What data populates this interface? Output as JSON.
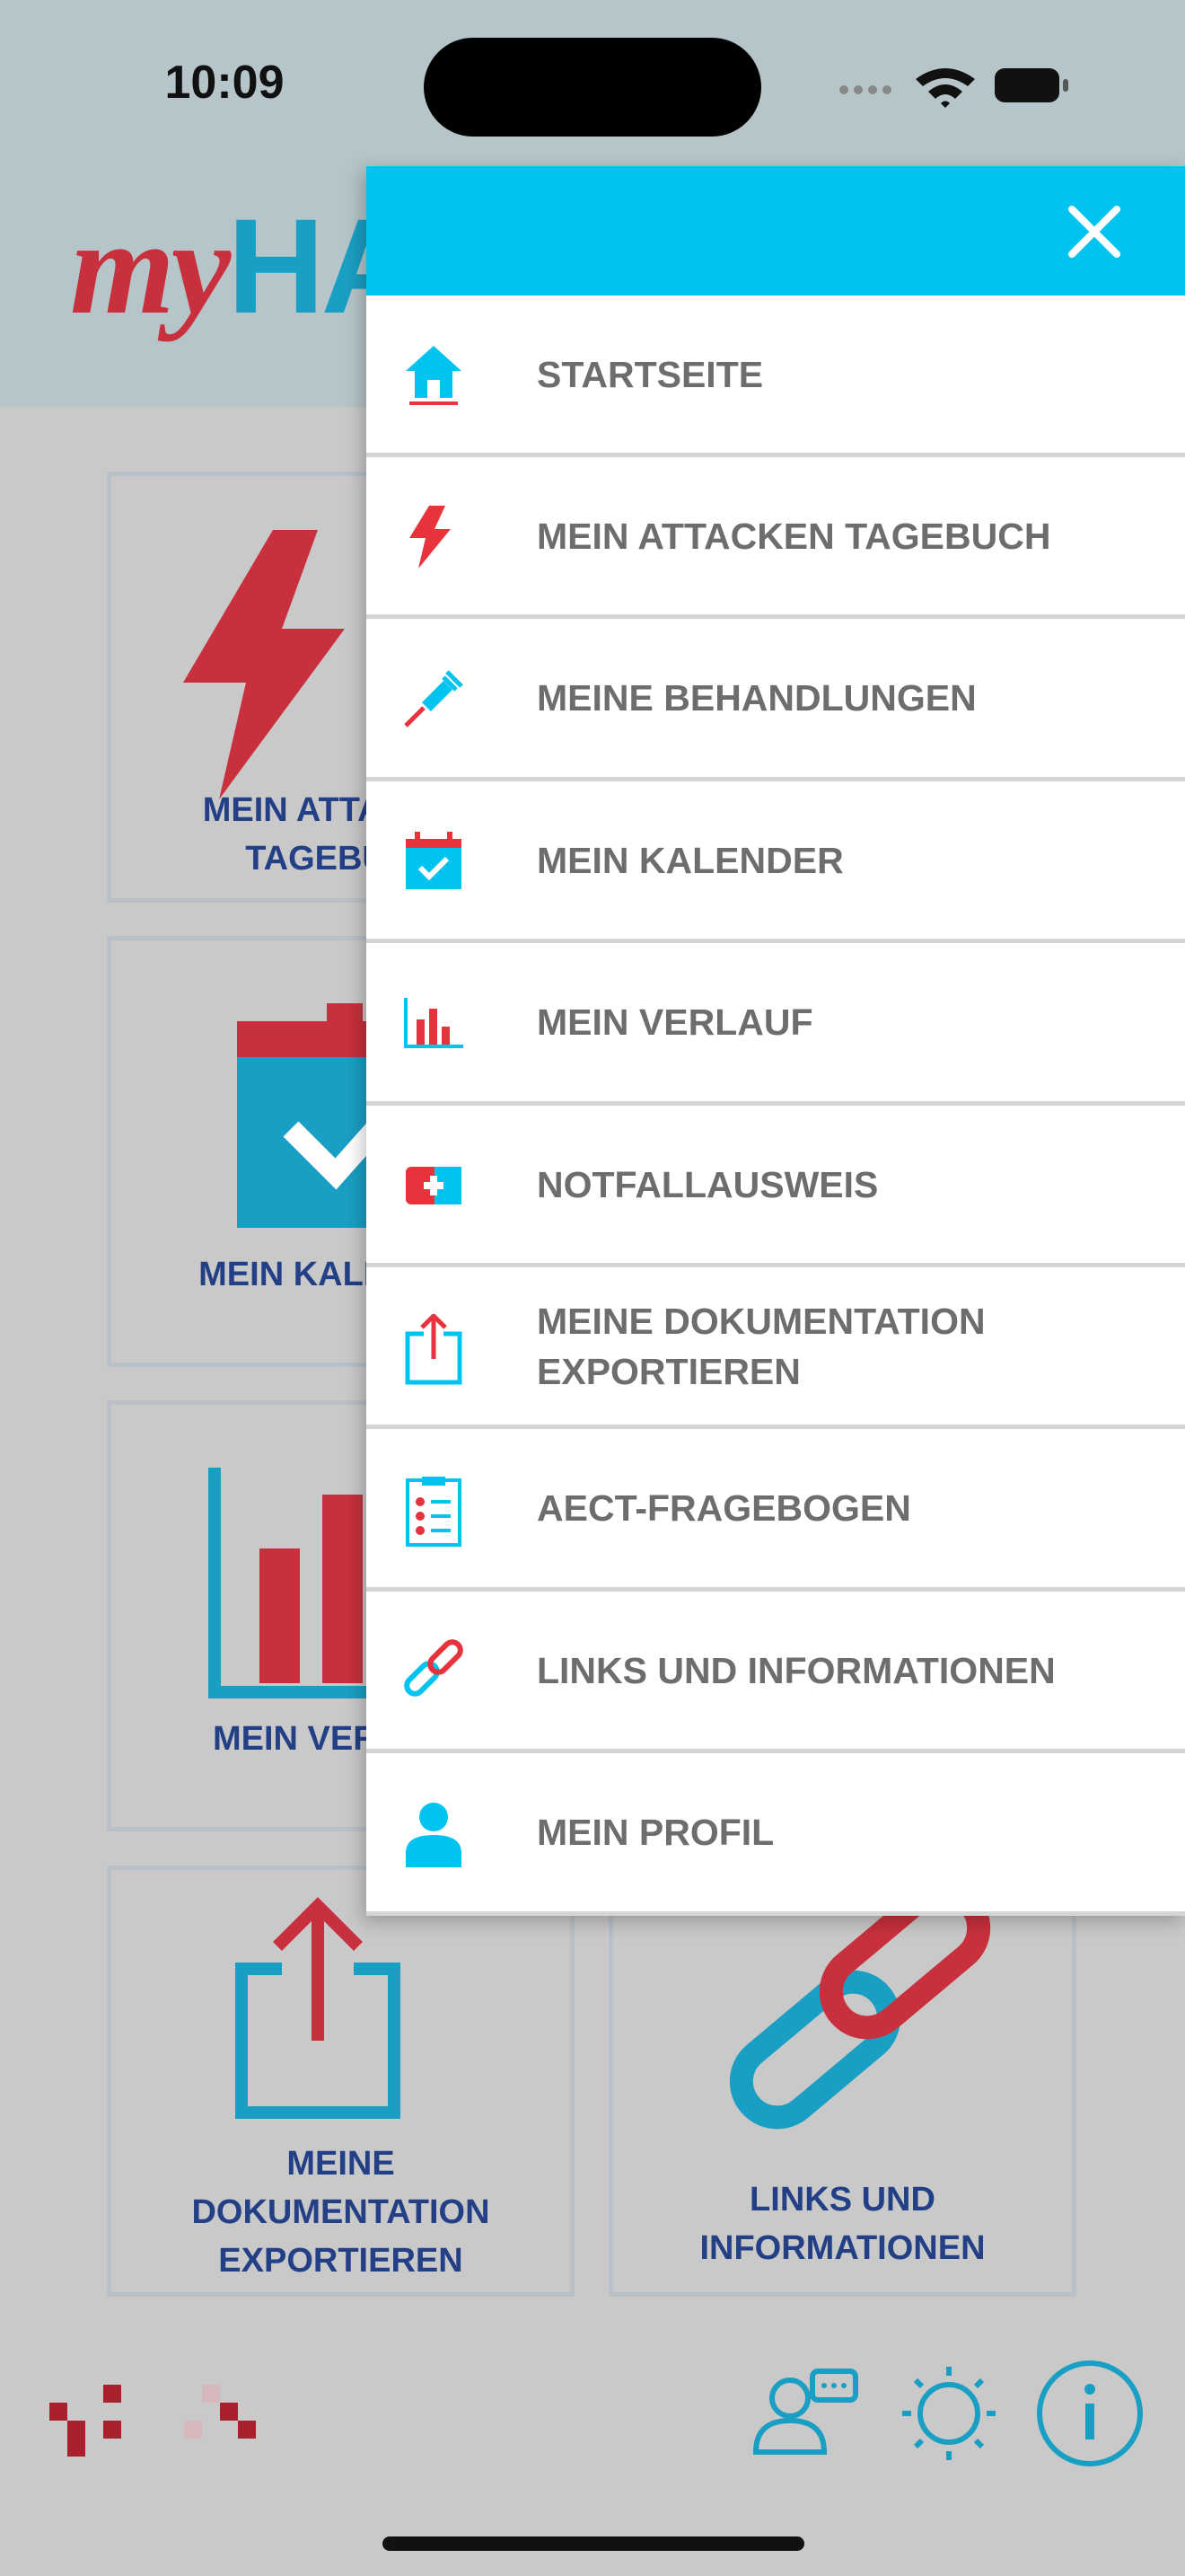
{
  "status": {
    "time": "10:09"
  },
  "logo": {
    "prefix": "my",
    "brand": "HA"
  },
  "tiles": [
    {
      "lines": [
        "MEIN ATTACKEN",
        "TAGEBUCH"
      ]
    },
    {
      "lines": [
        "MEIN KALENDER"
      ]
    },
    {
      "lines": [
        "MEIN VERLAUF"
      ]
    },
    {
      "lines": [
        "MEINE",
        "DOKUMENTATION",
        "EXPORTIEREN"
      ]
    },
    {
      "lines": [
        "LINKS UND",
        "INFORMATIONEN"
      ]
    }
  ],
  "menu": {
    "items": [
      {
        "icon": "home",
        "label": "STARTSEITE"
      },
      {
        "icon": "bolt",
        "label": "MEIN ATTACKEN TAGEBUCH"
      },
      {
        "icon": "syringe",
        "label": "MEINE BEHANDLUNGEN"
      },
      {
        "icon": "calendar",
        "label": "MEIN KALENDER"
      },
      {
        "icon": "chart",
        "label": "MEIN VERLAUF"
      },
      {
        "icon": "emergency",
        "label": "NOTFALLAUSWEIS"
      },
      {
        "icon": "export",
        "label": "MEINE DOKUMENTATION EXPORTIEREN"
      },
      {
        "icon": "form",
        "label": "AECT-FRAGEBOGEN"
      },
      {
        "icon": "link",
        "label": "LINKS UND INFORMATIONEN"
      },
      {
        "icon": "profile",
        "label": "MEIN PROFIL"
      }
    ]
  }
}
